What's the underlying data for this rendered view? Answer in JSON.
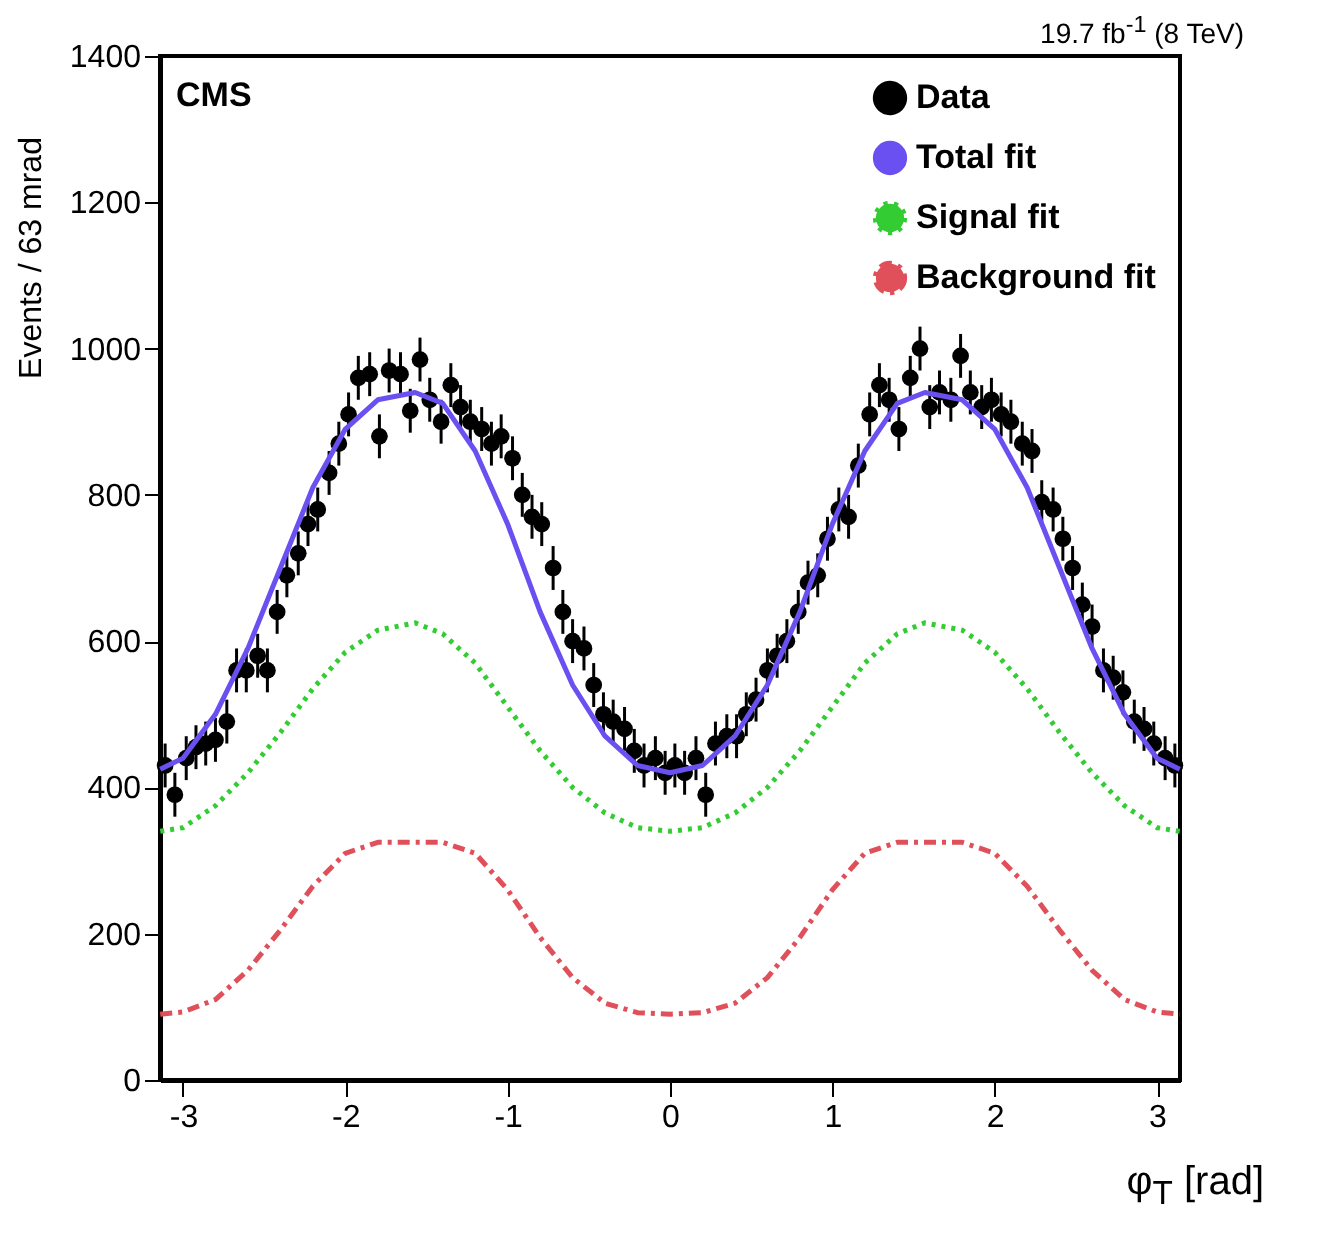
{
  "chart_data": {
    "type": "scatter",
    "title": null,
    "subtitle": "19.7 fb$^{-1}$ (8 TeV)",
    "xlabel": "φ$_{T}$ [rad]",
    "ylabel": "Events / 63 mrad",
    "annotations": [
      "CMS"
    ],
    "xlim": [
      -3.1416,
      3.1416
    ],
    "xticks": [
      -3,
      -2,
      -1,
      0,
      1,
      2,
      3
    ],
    "ylim": [
      0,
      1400
    ],
    "yticks": [
      0,
      200,
      400,
      600,
      800,
      1000,
      1200,
      1400
    ],
    "grid": false,
    "legend": "top right",
    "series": [
      {
        "name": "Data",
        "type": "scatter",
        "marker": "circle",
        "color": "#000000",
        "x": [
          -3.11,
          -3.05,
          -2.98,
          -2.92,
          -2.86,
          -2.8,
          -2.73,
          -2.67,
          -2.61,
          -2.54,
          -2.48,
          -2.42,
          -2.36,
          -2.29,
          -2.23,
          -2.17,
          -2.1,
          -2.04,
          -1.98,
          -1.92,
          -1.85,
          -1.79,
          -1.73,
          -1.66,
          -1.6,
          -1.54,
          -1.48,
          -1.41,
          -1.35,
          -1.29,
          -1.23,
          -1.16,
          -1.1,
          -1.04,
          -0.97,
          -0.91,
          -0.85,
          -0.79,
          -0.72,
          -0.66,
          -0.6,
          -0.53,
          -0.47,
          -0.41,
          -0.35,
          -0.28,
          -0.22,
          -0.16,
          -0.09,
          -0.03,
          0.03,
          0.09,
          0.16,
          0.22,
          0.28,
          0.35,
          0.41,
          0.47,
          0.53,
          0.6,
          0.66,
          0.72,
          0.79,
          0.85,
          0.91,
          0.97,
          1.04,
          1.1,
          1.16,
          1.23,
          1.29,
          1.35,
          1.41,
          1.48,
          1.54,
          1.6,
          1.66,
          1.73,
          1.79,
          1.85,
          1.92,
          1.98,
          2.04,
          2.1,
          2.17,
          2.23,
          2.29,
          2.36,
          2.42,
          2.48,
          2.54,
          2.6,
          2.67,
          2.73,
          2.79,
          2.86,
          2.92,
          2.98,
          3.05,
          3.11
        ],
        "values": [
          430,
          390,
          440,
          455,
          460,
          465,
          490,
          560,
          560,
          580,
          560,
          640,
          690,
          720,
          760,
          780,
          830,
          870,
          910,
          960,
          965,
          880,
          970,
          965,
          915,
          985,
          930,
          900,
          950,
          920,
          900,
          890,
          870,
          880,
          850,
          800,
          770,
          760,
          700,
          640,
          600,
          590,
          540,
          500,
          490,
          480,
          450,
          430,
          440,
          420,
          430,
          420,
          440,
          390,
          460,
          470,
          470,
          500,
          520,
          560,
          580,
          600,
          640,
          680,
          690,
          740,
          780,
          770,
          840,
          910,
          950,
          930,
          890,
          960,
          1000,
          920,
          940,
          930,
          990,
          940,
          920,
          930,
          910,
          900,
          870,
          860,
          790,
          780,
          740,
          700,
          650,
          620,
          560,
          550,
          530,
          490,
          480,
          460,
          440,
          430
        ],
        "errors": [
          30,
          30,
          30,
          30,
          30,
          30,
          30,
          30,
          30,
          30,
          30,
          30,
          30,
          30,
          30,
          30,
          30,
          30,
          30,
          30,
          30,
          30,
          30,
          30,
          30,
          30,
          30,
          30,
          30,
          30,
          30,
          30,
          30,
          30,
          30,
          30,
          30,
          30,
          30,
          30,
          30,
          30,
          30,
          30,
          30,
          30,
          30,
          30,
          30,
          30,
          30,
          30,
          30,
          30,
          30,
          30,
          30,
          30,
          30,
          30,
          30,
          30,
          30,
          30,
          30,
          30,
          30,
          30,
          30,
          30,
          30,
          30,
          30,
          30,
          30,
          30,
          30,
          30,
          30,
          30,
          30,
          30,
          30,
          30,
          30,
          30,
          30,
          30,
          30,
          30,
          30,
          30,
          30,
          30,
          30,
          30,
          30,
          30,
          30,
          30
        ]
      },
      {
        "name": "Total fit",
        "type": "line",
        "line_style": "solid",
        "color": "#6a50f0",
        "x": [
          -3.14,
          -3.0,
          -2.8,
          -2.6,
          -2.4,
          -2.2,
          -2.0,
          -1.8,
          -1.57,
          -1.4,
          -1.2,
          -1.0,
          -0.8,
          -0.6,
          -0.4,
          -0.2,
          0,
          0.2,
          0.4,
          0.6,
          0.8,
          1.0,
          1.2,
          1.4,
          1.57,
          1.8,
          2.0,
          2.2,
          2.4,
          2.6,
          2.8,
          3.0,
          3.14
        ],
        "values": [
          425,
          440,
          500,
          590,
          700,
          810,
          890,
          930,
          940,
          925,
          860,
          760,
          640,
          540,
          470,
          430,
          420,
          430,
          470,
          540,
          640,
          760,
          860,
          925,
          940,
          930,
          890,
          810,
          700,
          590,
          500,
          440,
          425
        ]
      },
      {
        "name": "Signal fit",
        "type": "line",
        "line_style": "dotted",
        "color": "#33cc33",
        "x": [
          -3.14,
          -3.0,
          -2.8,
          -2.6,
          -2.4,
          -2.2,
          -2.0,
          -1.8,
          -1.57,
          -1.4,
          -1.2,
          -1.0,
          -0.8,
          -0.6,
          -0.4,
          -0.2,
          0,
          0.2,
          0.4,
          0.6,
          0.8,
          1.0,
          1.2,
          1.4,
          1.57,
          1.8,
          2.0,
          2.2,
          2.4,
          2.6,
          2.8,
          3.0,
          3.14
        ],
        "values": [
          340,
          345,
          375,
          420,
          475,
          535,
          585,
          615,
          625,
          610,
          570,
          510,
          450,
          400,
          365,
          345,
          340,
          345,
          365,
          400,
          450,
          510,
          570,
          610,
          625,
          615,
          585,
          535,
          475,
          420,
          375,
          345,
          340
        ]
      },
      {
        "name": "Background fit",
        "type": "line",
        "line_style": "dashdot",
        "color": "#e0505a",
        "x": [
          -3.14,
          -3.0,
          -2.8,
          -2.6,
          -2.4,
          -2.2,
          -2.0,
          -1.8,
          -1.57,
          -1.4,
          -1.2,
          -1.0,
          -0.8,
          -0.6,
          -0.4,
          -0.2,
          0,
          0.2,
          0.4,
          0.6,
          0.8,
          1.0,
          1.2,
          1.4,
          1.57,
          1.8,
          2.0,
          2.2,
          2.4,
          2.6,
          2.8,
          3.0,
          3.14
        ],
        "values": [
          90,
          93,
          110,
          150,
          205,
          265,
          310,
          325,
          325,
          325,
          310,
          260,
          195,
          140,
          105,
          92,
          90,
          92,
          105,
          140,
          195,
          260,
          310,
          325,
          325,
          325,
          310,
          265,
          205,
          150,
          110,
          93,
          90
        ]
      }
    ]
  }
}
